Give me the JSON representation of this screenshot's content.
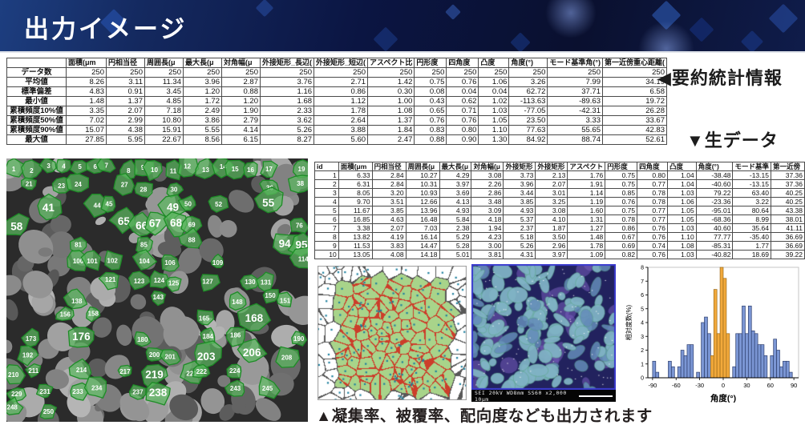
{
  "header": {
    "title": "出力イメージ"
  },
  "labels": {
    "summary": "◀要約統計情報",
    "raw": "▼生データ",
    "caption": "▲凝集率、被覆率、配向度なども出力されます"
  },
  "summary_table": {
    "columns": [
      "面積(μm",
      "円相当径",
      "周囲長(μ",
      "最大長(μ",
      "対角幅(μ",
      "外接矩形_長辺(",
      "外接矩形_短辺(",
      "アスペクト比",
      "円形度",
      "四角度",
      "凸度",
      "角度(°)",
      "モード基準角(°)",
      "第一近傍重心距離("
    ],
    "rows": [
      {
        "label": "データ数",
        "values": [
          "250",
          "250",
          "250",
          "250",
          "250",
          "250",
          "250",
          "250",
          "250",
          "250",
          "250",
          "250",
          "250",
          "250"
        ]
      },
      {
        "label": "平均値",
        "values": [
          "8.26",
          "3.11",
          "11.34",
          "3.96",
          "2.87",
          "3.76",
          "2.71",
          "1.42",
          "0.75",
          "0.76",
          "1.06",
          "3.26",
          "7.99",
          "34.19"
        ]
      },
      {
        "label": "標準偏差",
        "values": [
          "4.83",
          "0.91",
          "3.45",
          "1.20",
          "0.88",
          "1.16",
          "0.86",
          "0.30",
          "0.08",
          "0.04",
          "0.04",
          "62.72",
          "37.71",
          "6.58"
        ]
      },
      {
        "label": "最小値",
        "values": [
          "1.48",
          "1.37",
          "4.85",
          "1.72",
          "1.20",
          "1.68",
          "1.12",
          "1.00",
          "0.43",
          "0.62",
          "1.02",
          "-113.63",
          "-89.63",
          "19.72"
        ]
      },
      {
        "label": "累積頻度10%値",
        "values": [
          "3.35",
          "2.07",
          "7.18",
          "2.49",
          "1.90",
          "2.33",
          "1.78",
          "1.08",
          "0.65",
          "0.71",
          "1.03",
          "-77.05",
          "-42.31",
          "26.28"
        ]
      },
      {
        "label": "累積頻度50%値",
        "values": [
          "7.02",
          "2.99",
          "10.80",
          "3.86",
          "2.79",
          "3.62",
          "2.64",
          "1.37",
          "0.76",
          "0.76",
          "1.05",
          "23.50",
          "3.33",
          "33.67"
        ]
      },
      {
        "label": "累積頻度90%値",
        "values": [
          "15.07",
          "4.38",
          "15.91",
          "5.55",
          "4.14",
          "5.26",
          "3.88",
          "1.84",
          "0.83",
          "0.80",
          "1.10",
          "77.63",
          "55.65",
          "42.83"
        ]
      },
      {
        "label": "最大値",
        "values": [
          "27.85",
          "5.95",
          "22.67",
          "8.56",
          "6.15",
          "8.27",
          "5.60",
          "2.47",
          "0.88",
          "0.90",
          "1.30",
          "84.92",
          "88.74",
          "52.61"
        ]
      }
    ]
  },
  "raw_table": {
    "columns": [
      "id",
      "面積(μm",
      "円相当径",
      "周囲長(μ",
      "最大長(μ",
      "対角幅(μ",
      "外接矩形",
      "外接矩形",
      "アスペクト",
      "円形度",
      "四角度",
      "凸度",
      "角度(°)",
      "モード基準",
      "第一近傍"
    ],
    "rows": [
      [
        "1",
        "6.33",
        "2.84",
        "10.27",
        "4.29",
        "3.08",
        "3.73",
        "2.13",
        "1.76",
        "0.75",
        "0.80",
        "1.04",
        "-38.48",
        "-13.15",
        "37.36"
      ],
      [
        "2",
        "6.31",
        "2.84",
        "10.31",
        "3.97",
        "2.26",
        "3.96",
        "2.07",
        "1.91",
        "0.75",
        "0.77",
        "1.04",
        "-40.60",
        "-13.15",
        "37.36"
      ],
      [
        "3",
        "8.05",
        "3.20",
        "10.93",
        "3.69",
        "2.86",
        "3.44",
        "3.01",
        "1.14",
        "0.85",
        "0.78",
        "1.03",
        "79.22",
        "63.40",
        "40.25"
      ],
      [
        "4",
        "9.70",
        "3.51",
        "12.66",
        "4.13",
        "3.48",
        "3.85",
        "3.25",
        "1.19",
        "0.76",
        "0.78",
        "1.06",
        "-23.36",
        "3.22",
        "40.25"
      ],
      [
        "5",
        "11.67",
        "3.85",
        "13.96",
        "4.93",
        "3.09",
        "4.93",
        "3.08",
        "1.60",
        "0.75",
        "0.77",
        "1.05",
        "-95.01",
        "80.64",
        "43.38"
      ],
      [
        "6",
        "16.85",
        "4.63",
        "16.48",
        "5.84",
        "4.18",
        "5.37",
        "4.10",
        "1.31",
        "0.78",
        "0.77",
        "1.05",
        "-68.36",
        "8.99",
        "38.01"
      ],
      [
        "7",
        "3.38",
        "2.07",
        "7.03",
        "2.38",
        "1.94",
        "2.37",
        "1.87",
        "1.27",
        "0.86",
        "0.76",
        "1.03",
        "40.60",
        "35.64",
        "41.11"
      ],
      [
        "8",
        "13.82",
        "4.19",
        "16.14",
        "5.29",
        "4.23",
        "5.18",
        "3.50",
        "1.48",
        "0.67",
        "0.76",
        "1.10",
        "77.77",
        "-35.40",
        "36.69"
      ],
      [
        "9",
        "11.53",
        "3.83",
        "14.47",
        "5.28",
        "3.00",
        "5.26",
        "2.96",
        "1.78",
        "0.69",
        "0.74",
        "1.08",
        "-85.31",
        "1.77",
        "36.69"
      ],
      [
        "10",
        "13.05",
        "4.08",
        "14.18",
        "5.01",
        "3.81",
        "4.31",
        "3.97",
        "1.09",
        "0.82",
        "0.76",
        "1.03",
        "-40.82",
        "18.69",
        "39.22"
      ]
    ]
  },
  "particle_panel": {
    "ids": [
      1,
      2,
      3,
      4,
      5,
      6,
      7,
      8,
      9,
      10,
      11,
      12,
      13,
      14,
      15,
      16,
      17,
      19,
      21,
      23,
      24,
      27,
      28,
      30,
      36,
      38,
      41,
      44,
      45,
      49,
      50,
      52,
      55,
      58,
      65,
      66,
      67,
      68,
      69,
      76,
      81,
      85,
      88,
      94,
      95,
      100,
      101,
      102,
      104,
      106,
      109,
      114,
      121,
      123,
      124,
      125,
      127,
      130,
      131,
      138,
      143,
      148,
      150,
      151,
      156,
      158,
      165,
      168,
      173,
      176,
      180,
      184,
      186,
      190,
      192,
      200,
      201,
      203,
      206,
      208,
      210,
      211,
      214,
      217,
      219,
      221,
      222,
      224,
      229,
      231,
      233,
      234,
      237,
      238,
      243,
      245,
      248,
      250
    ],
    "big_ids": [
      41,
      49,
      55,
      58,
      65,
      66,
      67,
      68,
      94,
      95,
      168,
      176,
      203,
      206,
      219,
      238
    ],
    "overlay_color": "#5cb960",
    "outline_color": "#1d8c26"
  },
  "sem_panel": {
    "info": [
      "SEI",
      "20kV",
      "WD8mm",
      "SS60",
      "x2,000",
      "10μm"
    ]
  },
  "chart_data": {
    "type": "bar",
    "title": "",
    "xlabel": "角度(°)",
    "ylabel": "相対度数(%)",
    "xlim": [
      -96,
      96
    ],
    "ylim": [
      0,
      8
    ],
    "xticks": [
      -90,
      -60,
      -30,
      0,
      30,
      60,
      90
    ],
    "yticks": [
      0,
      1,
      2,
      3,
      4,
      5,
      6,
      7,
      8
    ],
    "bin_width": 4,
    "legend": "none",
    "grid": false,
    "colors": {
      "blue": "#7b96d4",
      "orange": "#f2a93b"
    },
    "bars": [
      {
        "x": -90,
        "h": 1.2,
        "c": "blue"
      },
      {
        "x": -86,
        "h": 0.4,
        "c": "blue"
      },
      {
        "x": -70,
        "h": 1.2,
        "c": "blue"
      },
      {
        "x": -66,
        "h": 0.8,
        "c": "blue"
      },
      {
        "x": -58,
        "h": 0.8,
        "c": "blue"
      },
      {
        "x": -54,
        "h": 2.0,
        "c": "blue"
      },
      {
        "x": -50,
        "h": 1.6,
        "c": "blue"
      },
      {
        "x": -46,
        "h": 2.4,
        "c": "blue"
      },
      {
        "x": -42,
        "h": 2.4,
        "c": "blue"
      },
      {
        "x": -34,
        "h": 0.4,
        "c": "blue"
      },
      {
        "x": -28,
        "h": 4.0,
        "c": "blue"
      },
      {
        "x": -24,
        "h": 4.4,
        "c": "blue"
      },
      {
        "x": -20,
        "h": 3.2,
        "c": "blue"
      },
      {
        "x": -16,
        "h": 1.6,
        "c": "orange"
      },
      {
        "x": -12,
        "h": 6.4,
        "c": "orange"
      },
      {
        "x": -8,
        "h": 3.2,
        "c": "orange"
      },
      {
        "x": -4,
        "h": 8.0,
        "c": "orange"
      },
      {
        "x": 0,
        "h": 7.2,
        "c": "orange"
      },
      {
        "x": 4,
        "h": 3.2,
        "c": "orange"
      },
      {
        "x": 12,
        "h": 0.8,
        "c": "blue"
      },
      {
        "x": 16,
        "h": 3.2,
        "c": "blue"
      },
      {
        "x": 20,
        "h": 3.2,
        "c": "blue"
      },
      {
        "x": 24,
        "h": 5.2,
        "c": "blue"
      },
      {
        "x": 28,
        "h": 3.2,
        "c": "blue"
      },
      {
        "x": 32,
        "h": 5.2,
        "c": "blue"
      },
      {
        "x": 36,
        "h": 3.4,
        "c": "blue"
      },
      {
        "x": 40,
        "h": 3.2,
        "c": "blue"
      },
      {
        "x": 44,
        "h": 2.4,
        "c": "blue"
      },
      {
        "x": 48,
        "h": 2.4,
        "c": "blue"
      },
      {
        "x": 52,
        "h": 1.6,
        "c": "blue"
      },
      {
        "x": 60,
        "h": 1.6,
        "c": "blue"
      },
      {
        "x": 64,
        "h": 2.8,
        "c": "blue"
      },
      {
        "x": 68,
        "h": 2.0,
        "c": "blue"
      },
      {
        "x": 72,
        "h": 0.8,
        "c": "blue"
      },
      {
        "x": 76,
        "h": 1.2,
        "c": "blue"
      },
      {
        "x": 80,
        "h": 1.2,
        "c": "blue"
      },
      {
        "x": 84,
        "h": 0.4,
        "c": "blue"
      }
    ]
  }
}
